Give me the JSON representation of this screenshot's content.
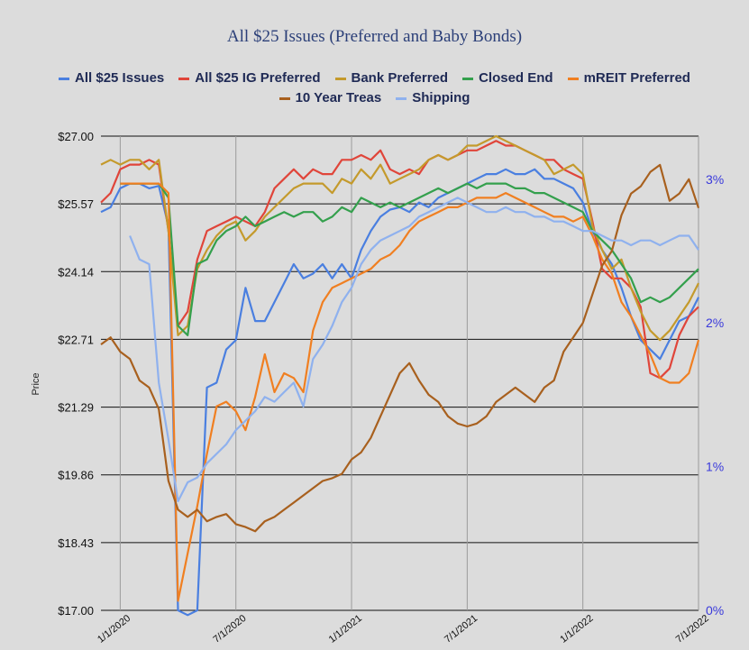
{
  "chart_data": {
    "type": "line",
    "title": "All $25 Issues (Preferred and Baby Bonds)",
    "ylabel": "Price",
    "ylim": [
      17.0,
      27.0
    ],
    "y_ticks": [
      "$17.00",
      "$18.43",
      "$19.86",
      "$21.29",
      "$22.71",
      "$24.14",
      "$25.57",
      "$27.00"
    ],
    "y2lim": [
      0,
      3.3
    ],
    "y2_ticks": [
      "0%",
      "1%",
      "2%",
      "3%"
    ],
    "x_ticks": [
      "1/1/2020",
      "7/1/2020",
      "1/1/2021",
      "7/1/2021",
      "1/1/2022",
      "7/1/2022"
    ],
    "legend_position": "top",
    "series": [
      {
        "name": "All $25 Issues",
        "color": "#4a7fe0",
        "axis": "left",
        "x": [
          0,
          0.5,
          1,
          1.5,
          2,
          2.5,
          3,
          3.5,
          4,
          4.5,
          5,
          5.5,
          6,
          6.5,
          7,
          7.5,
          8,
          8.5,
          9,
          9.5,
          10,
          10.5,
          11,
          11.5,
          12,
          12.5,
          13,
          13.5,
          14,
          14.5,
          15,
          15.5,
          16,
          16.5,
          17,
          17.5,
          18,
          18.5,
          19,
          19.5,
          20,
          20.5,
          21,
          21.5,
          22,
          22.5,
          23,
          23.5,
          24,
          24.5,
          25,
          25.5,
          26,
          26.5,
          27,
          27.5,
          28,
          28.5,
          29,
          29.5,
          30,
          30.5,
          31
        ],
        "y": [
          25.4,
          25.5,
          25.9,
          26.0,
          26.0,
          25.9,
          25.95,
          25.1,
          17.0,
          16.9,
          17.0,
          21.7,
          21.8,
          22.5,
          22.7,
          23.8,
          23.1,
          23.1,
          23.5,
          23.9,
          24.3,
          24.0,
          24.1,
          24.3,
          24.0,
          24.3,
          24.0,
          24.6,
          25.0,
          25.3,
          25.45,
          25.5,
          25.4,
          25.6,
          25.5,
          25.7,
          25.8,
          25.9,
          26.0,
          26.1,
          26.2,
          26.2,
          26.3,
          26.2,
          26.2,
          26.3,
          26.1,
          26.1,
          26.0,
          25.9,
          25.6,
          25.0,
          24.6,
          24.3,
          23.8,
          23.2,
          22.7,
          22.5,
          22.3,
          22.7,
          23.1,
          23.2,
          23.6
        ]
      },
      {
        "name": "All $25 IG Preferred",
        "color": "#e0453a",
        "axis": "left",
        "x": [
          0,
          0.5,
          1,
          1.5,
          2,
          2.5,
          3,
          3.5,
          4,
          4.5,
          5,
          5.5,
          6,
          6.5,
          7,
          7.5,
          8,
          8.5,
          9,
          9.5,
          10,
          10.5,
          11,
          11.5,
          12,
          12.5,
          13,
          13.5,
          14,
          14.5,
          15,
          15.5,
          16,
          16.5,
          17,
          17.5,
          18,
          18.5,
          19,
          19.5,
          20,
          20.5,
          21,
          21.5,
          22,
          22.5,
          23,
          23.5,
          24,
          24.5,
          25,
          25.5,
          26,
          26.5,
          27,
          27.5,
          28,
          28.5,
          29,
          29.5,
          30,
          30.5,
          31
        ],
        "y": [
          25.6,
          25.8,
          26.3,
          26.4,
          26.4,
          26.5,
          26.4,
          25.0,
          23.0,
          23.3,
          24.4,
          25.0,
          25.1,
          25.2,
          25.3,
          25.2,
          25.1,
          25.4,
          25.9,
          26.1,
          26.3,
          26.1,
          26.3,
          26.2,
          26.2,
          26.5,
          26.5,
          26.6,
          26.5,
          26.7,
          26.3,
          26.2,
          26.3,
          26.2,
          26.5,
          26.6,
          26.5,
          26.6,
          26.7,
          26.7,
          26.8,
          26.9,
          26.8,
          26.8,
          26.7,
          26.6,
          26.5,
          26.5,
          26.3,
          26.2,
          26.1,
          25.2,
          24.2,
          24.0,
          24.0,
          23.8,
          23.4,
          22.0,
          21.9,
          22.1,
          22.8,
          23.2,
          23.4
        ]
      },
      {
        "name": "Bank Preferred",
        "color": "#c49a2c",
        "axis": "left",
        "x": [
          0,
          0.5,
          1,
          1.5,
          2,
          2.5,
          3,
          3.5,
          4,
          4.5,
          5,
          5.5,
          6,
          6.5,
          7,
          7.5,
          8,
          8.5,
          9,
          9.5,
          10,
          10.5,
          11,
          11.5,
          12,
          12.5,
          13,
          13.5,
          14,
          14.5,
          15,
          15.5,
          16,
          16.5,
          17,
          17.5,
          18,
          18.5,
          19,
          19.5,
          20,
          20.5,
          21,
          21.5,
          22,
          22.5,
          23,
          23.5,
          24,
          24.5,
          25,
          25.5,
          26,
          26.5,
          27,
          27.5,
          28,
          28.5,
          29,
          29.5,
          30,
          30.5,
          31
        ],
        "y": [
          26.4,
          26.5,
          26.4,
          26.5,
          26.5,
          26.3,
          26.5,
          25.0,
          22.8,
          23.0,
          24.2,
          24.6,
          24.9,
          25.1,
          25.2,
          24.8,
          25.0,
          25.3,
          25.5,
          25.7,
          25.9,
          26.0,
          26.0,
          26.0,
          25.8,
          26.1,
          26.0,
          26.3,
          26.1,
          26.4,
          26.0,
          26.1,
          26.2,
          26.3,
          26.5,
          26.6,
          26.5,
          26.6,
          26.8,
          26.8,
          26.9,
          27.0,
          26.9,
          26.8,
          26.7,
          26.6,
          26.5,
          26.2,
          26.3,
          26.4,
          26.2,
          25.1,
          24.6,
          24.2,
          24.4,
          23.8,
          23.3,
          22.9,
          22.7,
          22.9,
          23.2,
          23.5,
          23.9
        ]
      },
      {
        "name": "Closed End",
        "color": "#34a04d",
        "axis": "left",
        "x": [
          0,
          0.5,
          1,
          1.5,
          2,
          2.5,
          3,
          3.5,
          4,
          4.5,
          5,
          5.5,
          6,
          6.5,
          7,
          7.5,
          8,
          8.5,
          9,
          9.5,
          10,
          10.5,
          11,
          11.5,
          12,
          12.5,
          13,
          13.5,
          14,
          14.5,
          15,
          15.5,
          16,
          16.5,
          17,
          17.5,
          18,
          18.5,
          19,
          19.5,
          20,
          20.5,
          21,
          21.5,
          22,
          22.5,
          23,
          23.5,
          24,
          24.5,
          25,
          25.5,
          26,
          26.5,
          27,
          27.5,
          28,
          28.5,
          29,
          29.5,
          30,
          30.5,
          31
        ],
        "y": [
          null,
          null,
          26.0,
          26.0,
          26.0,
          26.0,
          26.0,
          25.7,
          23.0,
          22.8,
          24.3,
          24.4,
          24.8,
          25.0,
          25.1,
          25.3,
          25.1,
          25.2,
          25.3,
          25.4,
          25.3,
          25.4,
          25.4,
          25.2,
          25.3,
          25.5,
          25.4,
          25.7,
          25.6,
          25.5,
          25.6,
          25.5,
          25.6,
          25.7,
          25.8,
          25.9,
          25.8,
          25.9,
          26.0,
          25.9,
          26.0,
          26.0,
          26.0,
          25.9,
          25.9,
          25.8,
          25.8,
          25.7,
          25.6,
          25.5,
          25.4,
          25.0,
          24.8,
          24.6,
          24.3,
          24.0,
          23.5,
          23.6,
          23.5,
          23.6,
          23.8,
          24.0,
          24.2
        ]
      },
      {
        "name": "mREIT Preferred",
        "color": "#f07f21",
        "axis": "left",
        "x": [
          0,
          0.5,
          1,
          1.5,
          2,
          2.5,
          3,
          3.5,
          4,
          4.5,
          5,
          5.5,
          6,
          6.5,
          7,
          7.5,
          8,
          8.5,
          9,
          9.5,
          10,
          10.5,
          11,
          11.5,
          12,
          12.5,
          13,
          13.5,
          14,
          14.5,
          15,
          15.5,
          16,
          16.5,
          17,
          17.5,
          18,
          18.5,
          19,
          19.5,
          20,
          20.5,
          21,
          21.5,
          22,
          22.5,
          23,
          23.5,
          24,
          24.5,
          25,
          25.5,
          26,
          26.5,
          27,
          27.5,
          28,
          28.5,
          29,
          29.5,
          30,
          30.5,
          31
        ],
        "y": [
          null,
          null,
          26.0,
          26.0,
          26.0,
          26.0,
          26.0,
          25.8,
          17.2,
          18.2,
          19.2,
          20.3,
          21.3,
          21.4,
          21.2,
          20.8,
          21.5,
          22.4,
          21.6,
          22.0,
          21.9,
          21.6,
          22.9,
          23.5,
          23.8,
          23.9,
          24.0,
          24.1,
          24.2,
          24.4,
          24.5,
          24.7,
          25.0,
          25.2,
          25.3,
          25.4,
          25.5,
          25.5,
          25.6,
          25.7,
          25.7,
          25.7,
          25.8,
          25.7,
          25.6,
          25.5,
          25.4,
          25.3,
          25.3,
          25.2,
          25.3,
          24.9,
          24.4,
          24.1,
          23.5,
          23.2,
          22.8,
          22.4,
          21.9,
          21.8,
          21.8,
          22.0,
          22.7
        ]
      },
      {
        "name": "10 Year Treas",
        "color": "#a8601e",
        "axis": "right",
        "x": [
          0,
          0.5,
          1,
          1.5,
          2,
          2.5,
          3,
          3.5,
          4,
          4.5,
          5,
          5.5,
          6,
          6.5,
          7,
          7.5,
          8,
          8.5,
          9,
          9.5,
          10,
          10.5,
          11,
          11.5,
          12,
          12.5,
          13,
          13.5,
          14,
          14.5,
          15,
          15.5,
          16,
          16.5,
          17,
          17.5,
          18,
          18.5,
          19,
          19.5,
          20,
          20.5,
          21,
          21.5,
          22,
          22.5,
          23,
          23.5,
          24,
          24.5,
          25,
          25.5,
          26,
          26.5,
          27,
          27.5,
          28,
          28.5,
          29,
          29.5,
          30,
          30.5,
          31
        ],
        "y": [
          1.85,
          1.9,
          1.8,
          1.75,
          1.6,
          1.55,
          1.4,
          0.9,
          0.7,
          0.65,
          0.7,
          0.62,
          0.65,
          0.67,
          0.6,
          0.58,
          0.55,
          0.62,
          0.65,
          0.7,
          0.75,
          0.8,
          0.85,
          0.9,
          0.92,
          0.95,
          1.05,
          1.1,
          1.2,
          1.35,
          1.5,
          1.65,
          1.72,
          1.6,
          1.5,
          1.45,
          1.35,
          1.3,
          1.28,
          1.3,
          1.35,
          1.45,
          1.5,
          1.55,
          1.5,
          1.45,
          1.55,
          1.6,
          1.8,
          1.9,
          2.0,
          2.2,
          2.4,
          2.5,
          2.75,
          2.9,
          2.95,
          3.05,
          3.1,
          2.85,
          2.9,
          3.0,
          2.8
        ]
      },
      {
        "name": "Shipping",
        "color": "#8fb1ee",
        "axis": "left",
        "x": [
          0,
          0.5,
          1,
          1.5,
          2,
          2.5,
          3,
          3.5,
          4,
          4.5,
          5,
          5.5,
          6,
          6.5,
          7,
          7.5,
          8,
          8.5,
          9,
          9.5,
          10,
          10.5,
          11,
          11.5,
          12,
          12.5,
          13,
          13.5,
          14,
          14.5,
          15,
          15.5,
          16,
          16.5,
          17,
          17.5,
          18,
          18.5,
          19,
          19.5,
          20,
          20.5,
          21,
          21.5,
          22,
          22.5,
          23,
          23.5,
          24,
          24.5,
          25,
          25.5,
          26,
          26.5,
          27,
          27.5,
          28,
          28.5,
          29,
          29.5,
          30,
          30.5,
          31
        ],
        "y": [
          null,
          null,
          null,
          24.9,
          24.4,
          24.3,
          21.8,
          20.6,
          19.3,
          19.7,
          19.8,
          20.1,
          20.3,
          20.5,
          20.8,
          21.0,
          21.2,
          21.5,
          21.4,
          21.6,
          21.8,
          21.3,
          22.3,
          22.6,
          23.0,
          23.5,
          23.8,
          24.3,
          24.6,
          24.8,
          24.9,
          25.0,
          25.1,
          25.3,
          25.4,
          25.5,
          25.6,
          25.7,
          25.6,
          25.5,
          25.4,
          25.4,
          25.5,
          25.4,
          25.4,
          25.3,
          25.3,
          25.2,
          25.2,
          25.1,
          25.0,
          25.0,
          24.9,
          24.8,
          24.8,
          24.7,
          24.8,
          24.8,
          24.7,
          24.8,
          24.9,
          24.9,
          24.6
        ]
      }
    ]
  }
}
